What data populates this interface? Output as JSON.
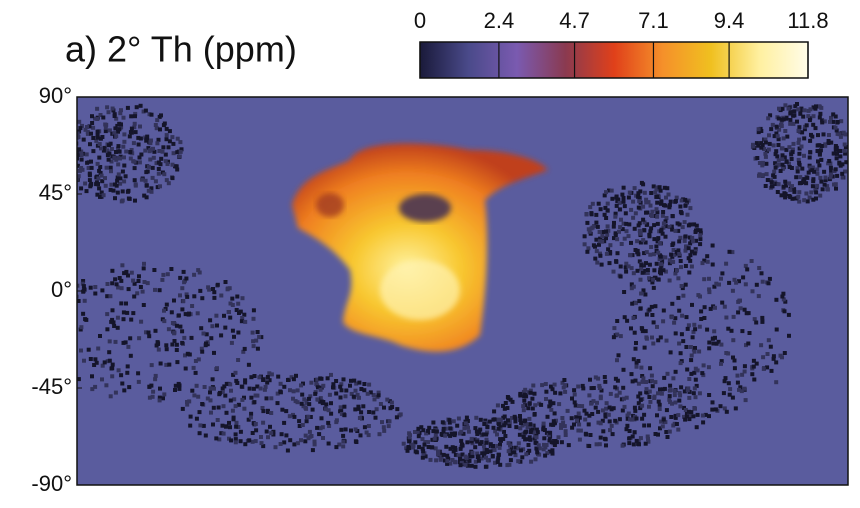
{
  "chart_data": {
    "type": "heatmap",
    "title": "a) 2° Th (ppm)",
    "colorbar": {
      "lim": [
        0,
        11.8
      ],
      "ticks": [
        0,
        2.4,
        4.7,
        7.1,
        9.4,
        11.8
      ],
      "colormap": [
        "#1a1a3a",
        "#4a4a8a",
        "#7a5ab0",
        "#8a3a50",
        "#e0401a",
        "#f5902a",
        "#f0c020",
        "#fff0a0",
        "#fffce8"
      ]
    },
    "ylim": [
      -90,
      90
    ],
    "yticks": [
      {
        "value": 90,
        "label": "90°"
      },
      {
        "value": 45,
        "label": "45°"
      },
      {
        "value": 0,
        "label": "0°"
      },
      {
        "value": -45,
        "label": "-45°"
      },
      {
        "value": -90,
        "label": "-90°"
      }
    ]
  }
}
